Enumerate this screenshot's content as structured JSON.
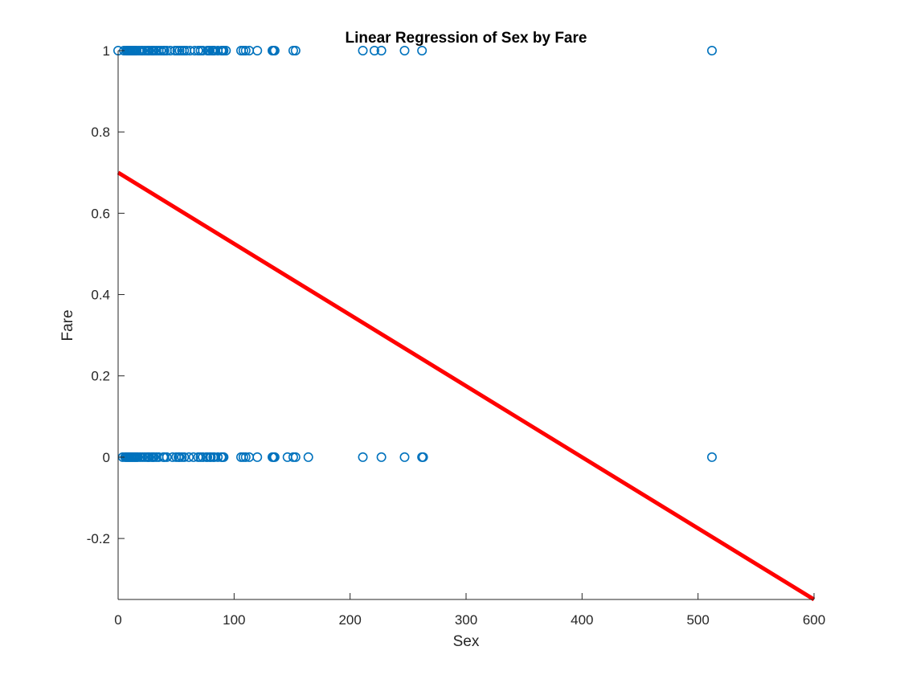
{
  "chart_data": {
    "type": "scatter",
    "title": "Linear Regression of Sex by Fare",
    "xlabel": "Sex",
    "ylabel": "Fare",
    "xlim": [
      0,
      600
    ],
    "ylim": [
      -0.35,
      1
    ],
    "xticks": [
      0,
      100,
      200,
      300,
      400,
      500,
      600
    ],
    "yticks": [
      -0.2,
      0,
      0.2,
      0.4,
      0.6,
      0.8,
      1
    ],
    "ytick_labels": [
      "-0.2",
      "0",
      "0.2",
      "0.4",
      "0.6",
      "0.8",
      "1"
    ],
    "grid": false,
    "marker_color": "#0072BD",
    "line_color": "#FF0000",
    "series": [
      {
        "type": "scatter",
        "marker": "circle-open",
        "points": [
          [
            0,
            1
          ],
          [
            5,
            1
          ],
          [
            7,
            1
          ],
          [
            8,
            1
          ],
          [
            9,
            1
          ],
          [
            10,
            1
          ],
          [
            11,
            1
          ],
          [
            12,
            1
          ],
          [
            13,
            1
          ],
          [
            14,
            1
          ],
          [
            15,
            1
          ],
          [
            16,
            1
          ],
          [
            18,
            1
          ],
          [
            20,
            1
          ],
          [
            21,
            1
          ],
          [
            23,
            1
          ],
          [
            25,
            1
          ],
          [
            26,
            1
          ],
          [
            27,
            1
          ],
          [
            29,
            1
          ],
          [
            30,
            1
          ],
          [
            31,
            1
          ],
          [
            33,
            1
          ],
          [
            35,
            1
          ],
          [
            37,
            1
          ],
          [
            39,
            1
          ],
          [
            40,
            1
          ],
          [
            42,
            1
          ],
          [
            45,
            1
          ],
          [
            49,
            1
          ],
          [
            51,
            1
          ],
          [
            53,
            1
          ],
          [
            55,
            1
          ],
          [
            57,
            1
          ],
          [
            59,
            1
          ],
          [
            62,
            1
          ],
          [
            66,
            1
          ],
          [
            69,
            1
          ],
          [
            71,
            1
          ],
          [
            73,
            1
          ],
          [
            77,
            1
          ],
          [
            78,
            1
          ],
          [
            79,
            1
          ],
          [
            81,
            1
          ],
          [
            82,
            1
          ],
          [
            83,
            1
          ],
          [
            86,
            1
          ],
          [
            89,
            1
          ],
          [
            90,
            1
          ],
          [
            91,
            1
          ],
          [
            93,
            1
          ],
          [
            106,
            1
          ],
          [
            108,
            1
          ],
          [
            110,
            1
          ],
          [
            113,
            1
          ],
          [
            120,
            1
          ],
          [
            133,
            1
          ],
          [
            134,
            1
          ],
          [
            135,
            1
          ],
          [
            151,
            1
          ],
          [
            153,
            1
          ],
          [
            211,
            1
          ],
          [
            221,
            1
          ],
          [
            227,
            1
          ],
          [
            247,
            1
          ],
          [
            262,
            1
          ],
          [
            512,
            1
          ],
          [
            4,
            0
          ],
          [
            6,
            0
          ],
          [
            7,
            0
          ],
          [
            8,
            0
          ],
          [
            9,
            0
          ],
          [
            10,
            0
          ],
          [
            11,
            0
          ],
          [
            12,
            0
          ],
          [
            13,
            0
          ],
          [
            14,
            0
          ],
          [
            15,
            0
          ],
          [
            16,
            0
          ],
          [
            17,
            0
          ],
          [
            19,
            0
          ],
          [
            21,
            0
          ],
          [
            23,
            0
          ],
          [
            25,
            0
          ],
          [
            26,
            0
          ],
          [
            27,
            0
          ],
          [
            29,
            0
          ],
          [
            30,
            0
          ],
          [
            31,
            0
          ],
          [
            33,
            0
          ],
          [
            35,
            0
          ],
          [
            39,
            0
          ],
          [
            40,
            0
          ],
          [
            42,
            0
          ],
          [
            47,
            0
          ],
          [
            50,
            0
          ],
          [
            52,
            0
          ],
          [
            53,
            0
          ],
          [
            55,
            0
          ],
          [
            57,
            0
          ],
          [
            61,
            0
          ],
          [
            65,
            0
          ],
          [
            69,
            0
          ],
          [
            71,
            0
          ],
          [
            73,
            0
          ],
          [
            76,
            0
          ],
          [
            77,
            0
          ],
          [
            79,
            0
          ],
          [
            80,
            0
          ],
          [
            82,
            0
          ],
          [
            83,
            0
          ],
          [
            86,
            0
          ],
          [
            89,
            0
          ],
          [
            90,
            0
          ],
          [
            91,
            0
          ],
          [
            106,
            0
          ],
          [
            108,
            0
          ],
          [
            110,
            0
          ],
          [
            113,
            0
          ],
          [
            120,
            0
          ],
          [
            133,
            0
          ],
          [
            134,
            0
          ],
          [
            135,
            0
          ],
          [
            146,
            0
          ],
          [
            151,
            0
          ],
          [
            153,
            0
          ],
          [
            164,
            0
          ],
          [
            211,
            0
          ],
          [
            227,
            0
          ],
          [
            247,
            0
          ],
          [
            262,
            0
          ],
          [
            263,
            0
          ],
          [
            512,
            0
          ]
        ]
      },
      {
        "type": "line",
        "points": [
          [
            0,
            0.7
          ],
          [
            600,
            -0.35
          ]
        ]
      }
    ]
  }
}
